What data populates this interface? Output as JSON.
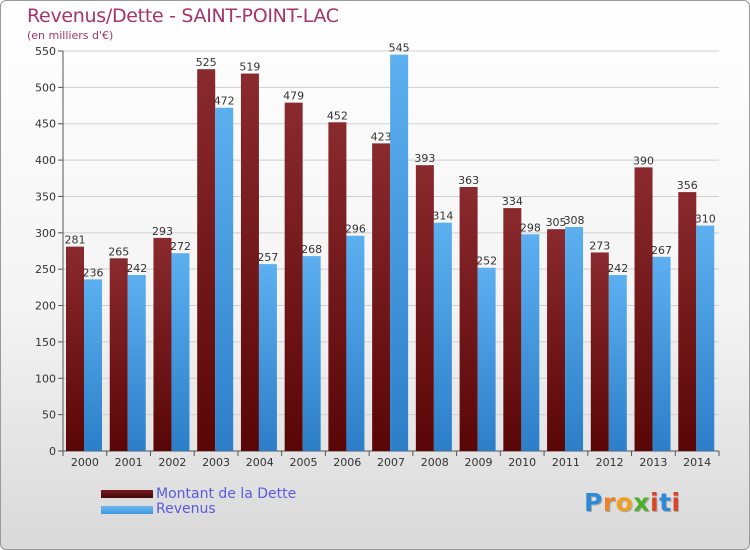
{
  "title": "Revenus/Dette - SAINT-POINT-LAC",
  "subtitle": "(en milliers d'€)",
  "colors": {
    "debt": "#7a1a1e",
    "revenue": "#3f9ae0",
    "text": "#a8326a",
    "legend_text": "#5a5adf"
  },
  "legend": [
    {
      "label": "Montant de la Dette",
      "color": "#7a1a1e"
    },
    {
      "label": "Revenus",
      "color": "#3f9ae0"
    }
  ],
  "logo": "Proxiti",
  "chart_data": {
    "type": "bar",
    "title": "Revenus/Dette - SAINT-POINT-LAC",
    "subtitle": "(en milliers d'€)",
    "categories": [
      "2000",
      "2001",
      "2002",
      "2003",
      "2004",
      "2005",
      "2006",
      "2007",
      "2008",
      "2009",
      "2010",
      "2011",
      "2012",
      "2013",
      "2014"
    ],
    "series": [
      {
        "name": "Montant de la Dette",
        "values": [
          281,
          265,
          293,
          525,
          519,
          479,
          452,
          423,
          393,
          363,
          334,
          305,
          273,
          390,
          356
        ]
      },
      {
        "name": "Revenus",
        "values": [
          236,
          242,
          272,
          472,
          257,
          268,
          296,
          545,
          314,
          252,
          298,
          308,
          242,
          267,
          310
        ]
      }
    ],
    "ylim": [
      0,
      550
    ],
    "yticks": [
      0,
      50,
      100,
      150,
      200,
      250,
      300,
      350,
      400,
      450,
      500,
      550
    ],
    "grid": true,
    "legend_position": "bottom-left"
  }
}
